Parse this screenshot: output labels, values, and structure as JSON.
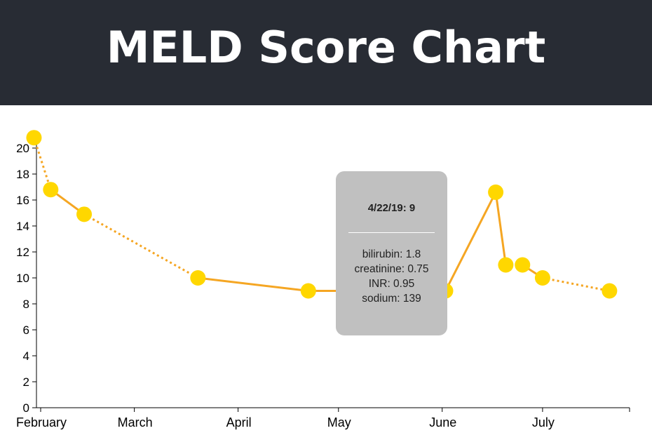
{
  "header": {
    "title": "MELD Score Chart",
    "background_color": "#282c34",
    "title_color": "#ffffff"
  },
  "chart_data": {
    "type": "line",
    "title": "MELD Score Chart",
    "xlabel": "",
    "ylabel": "",
    "ylim": [
      0,
      21
    ],
    "y_ticks": [
      0,
      2,
      4,
      6,
      8,
      10,
      12,
      14,
      16,
      18,
      20
    ],
    "x_range": [
      "2019-02-01",
      "2019-07-27"
    ],
    "x_ticks": [
      {
        "date": "2019-02-01",
        "label": "February"
      },
      {
        "date": "2019-03-01",
        "label": "March"
      },
      {
        "date": "2019-04-01",
        "label": "April"
      },
      {
        "date": "2019-05-01",
        "label": "May"
      },
      {
        "date": "2019-06-01",
        "label": "June"
      },
      {
        "date": "2019-07-01",
        "label": "July"
      }
    ],
    "line_color": "#f5a623",
    "point_color": "#ffd700",
    "grid": false,
    "points": [
      {
        "date": "2019-01-30",
        "value": 20.8
      },
      {
        "date": "2019-02-04",
        "value": 16.8
      },
      {
        "date": "2019-02-14",
        "value": 14.9
      },
      {
        "date": "2019-03-20",
        "value": 10.0
      },
      {
        "date": "2019-04-22",
        "value": 9
      },
      {
        "date": "2019-06-02",
        "value": 9
      },
      {
        "date": "2019-06-17",
        "value": 16.6
      },
      {
        "date": "2019-06-20",
        "value": 11.0
      },
      {
        "date": "2019-06-25",
        "value": 11.0
      },
      {
        "date": "2019-07-01",
        "value": 10.0
      },
      {
        "date": "2019-07-21",
        "value": 9.0
      }
    ],
    "segments": [
      {
        "from": 0,
        "to": 1,
        "style": "dotted"
      },
      {
        "from": 1,
        "to": 2,
        "style": "solid"
      },
      {
        "from": 2,
        "to": 3,
        "style": "dotted"
      },
      {
        "from": 3,
        "to": 4,
        "style": "solid"
      },
      {
        "from": 4,
        "to": 5,
        "style": "solid"
      },
      {
        "from": 5,
        "to": 6,
        "style": "solid"
      },
      {
        "from": 6,
        "to": 7,
        "style": "solid"
      },
      {
        "from": 7,
        "to": 8,
        "style": "dotted"
      },
      {
        "from": 8,
        "to": 9,
        "style": "solid"
      },
      {
        "from": 9,
        "to": 10,
        "style": "dotted"
      }
    ],
    "tooltip": {
      "title": "4/22/19: 9",
      "lines": [
        "bilirubin: 1.8",
        "creatinine: 0.75",
        "INR: 0.95",
        "sodium: 139"
      ]
    }
  }
}
